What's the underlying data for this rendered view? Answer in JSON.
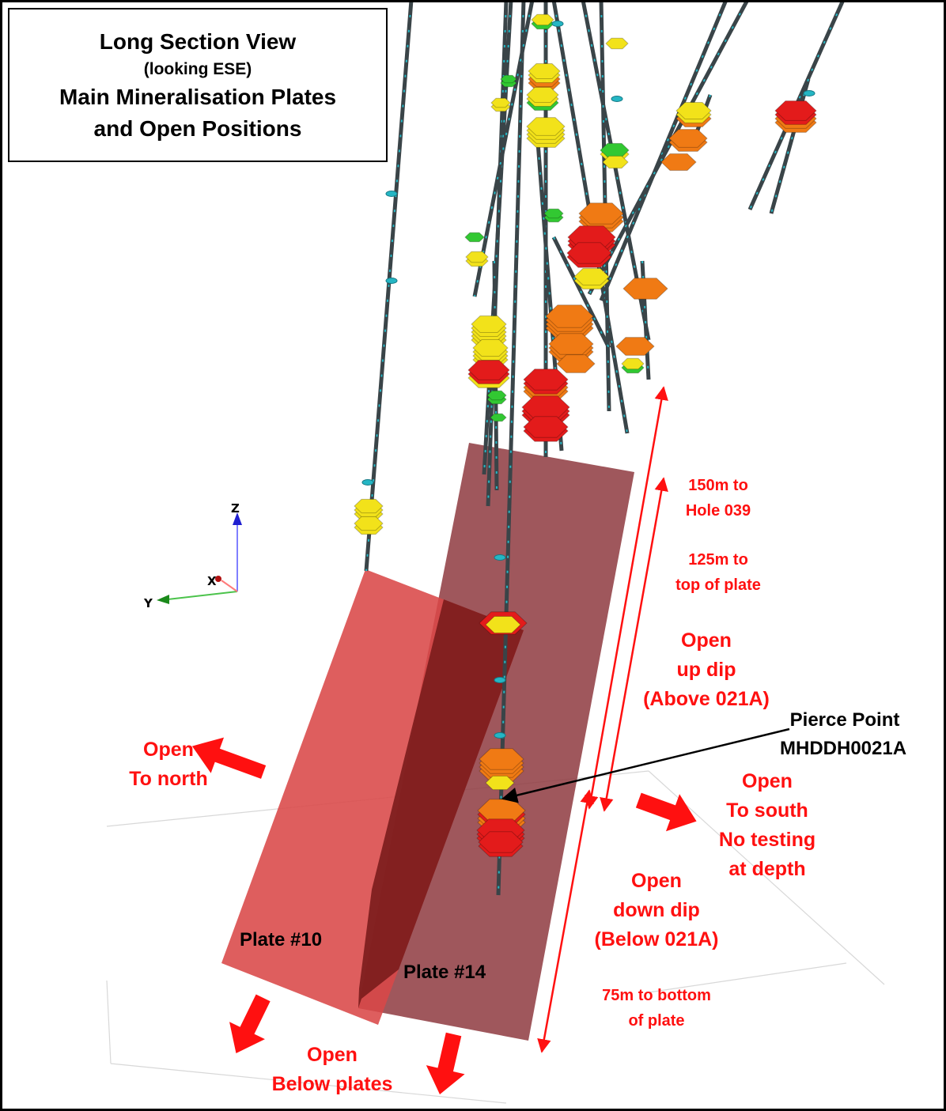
{
  "title": {
    "line1": "Long Section View",
    "line2": "(looking ESE)",
    "line3": "Main Mineralisation Plates",
    "line4": "and Open Positions"
  },
  "axes": {
    "z": "Z",
    "x": "X",
    "y": "Y"
  },
  "plates": {
    "plate10": "Plate #10",
    "plate14": "Plate #14"
  },
  "pierce_point": {
    "line1": "Pierce Point",
    "line2": "MHDDH0021A"
  },
  "distances": {
    "hole039": {
      "line1": "150m to",
      "line2": "Hole 039"
    },
    "top_plate": {
      "line1": "125m to",
      "line2": "top of plate"
    },
    "bottom_plate": {
      "line1": "75m to bottom",
      "line2": "of plate"
    }
  },
  "open_labels": {
    "up_dip": {
      "line1": "Open",
      "line2": "up dip",
      "line3": "(Above 021A)"
    },
    "down_dip": {
      "line1": "Open",
      "line2": "down dip",
      "line3": "(Below 021A)"
    },
    "north": {
      "line1": "Open",
      "line2": "To north"
    },
    "south": {
      "line1": "Open",
      "line2": "To south",
      "line3": "No testing",
      "line4": "at depth"
    },
    "below": {
      "line1": "Open",
      "line2": "Below plates"
    }
  },
  "colors": {
    "annotation_red": "#ff1010",
    "plate10": "#d94848",
    "plate14": "#8e3a3f",
    "overlap": "#7a1c1c",
    "drillhole": "#3a4448",
    "trace_cyan": "#25b6c4",
    "intercept_yellow": "#f2e21a",
    "intercept_orange": "#f07a14",
    "intercept_red": "#e31b1b",
    "intercept_green": "#32c832"
  }
}
